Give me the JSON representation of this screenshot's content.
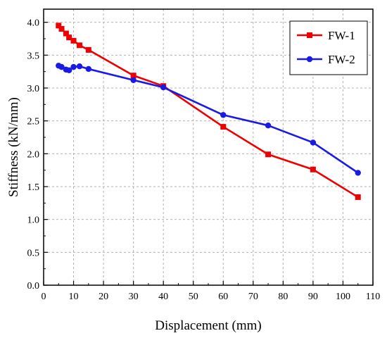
{
  "chart_data": {
    "type": "line",
    "xlabel": "Displacement (mm)",
    "ylabel": "Stiffness (kN/mm)",
    "xlim": [
      0,
      110
    ],
    "ylim": [
      0,
      4.2
    ],
    "x_ticks": [
      0,
      10,
      20,
      30,
      40,
      50,
      60,
      70,
      80,
      90,
      100,
      110
    ],
    "y_ticks": [
      "0.0",
      "0.5",
      "1.0",
      "1.5",
      "2.0",
      "2.5",
      "3.0",
      "3.5",
      "4.0"
    ],
    "grid": true,
    "legend_position": "top-right",
    "series": [
      {
        "name": "FW-1",
        "color": "#ee0000",
        "marker": "square",
        "x": [
          5,
          6,
          7.5,
          8.5,
          10,
          12,
          15,
          30,
          40,
          60,
          75,
          90,
          105
        ],
        "y": [
          3.95,
          3.9,
          3.83,
          3.77,
          3.72,
          3.65,
          3.58,
          3.19,
          3.03,
          2.41,
          1.99,
          1.76,
          1.34
        ]
      },
      {
        "name": "FW-2",
        "color": "#1a1ae6",
        "marker": "circle",
        "x": [
          5,
          6,
          7.5,
          8.5,
          10,
          12,
          15,
          30,
          40,
          60,
          75,
          90,
          105
        ],
        "y": [
          3.34,
          3.32,
          3.28,
          3.27,
          3.32,
          3.33,
          3.29,
          3.12,
          3.01,
          2.59,
          2.43,
          2.17,
          1.71
        ]
      }
    ]
  }
}
